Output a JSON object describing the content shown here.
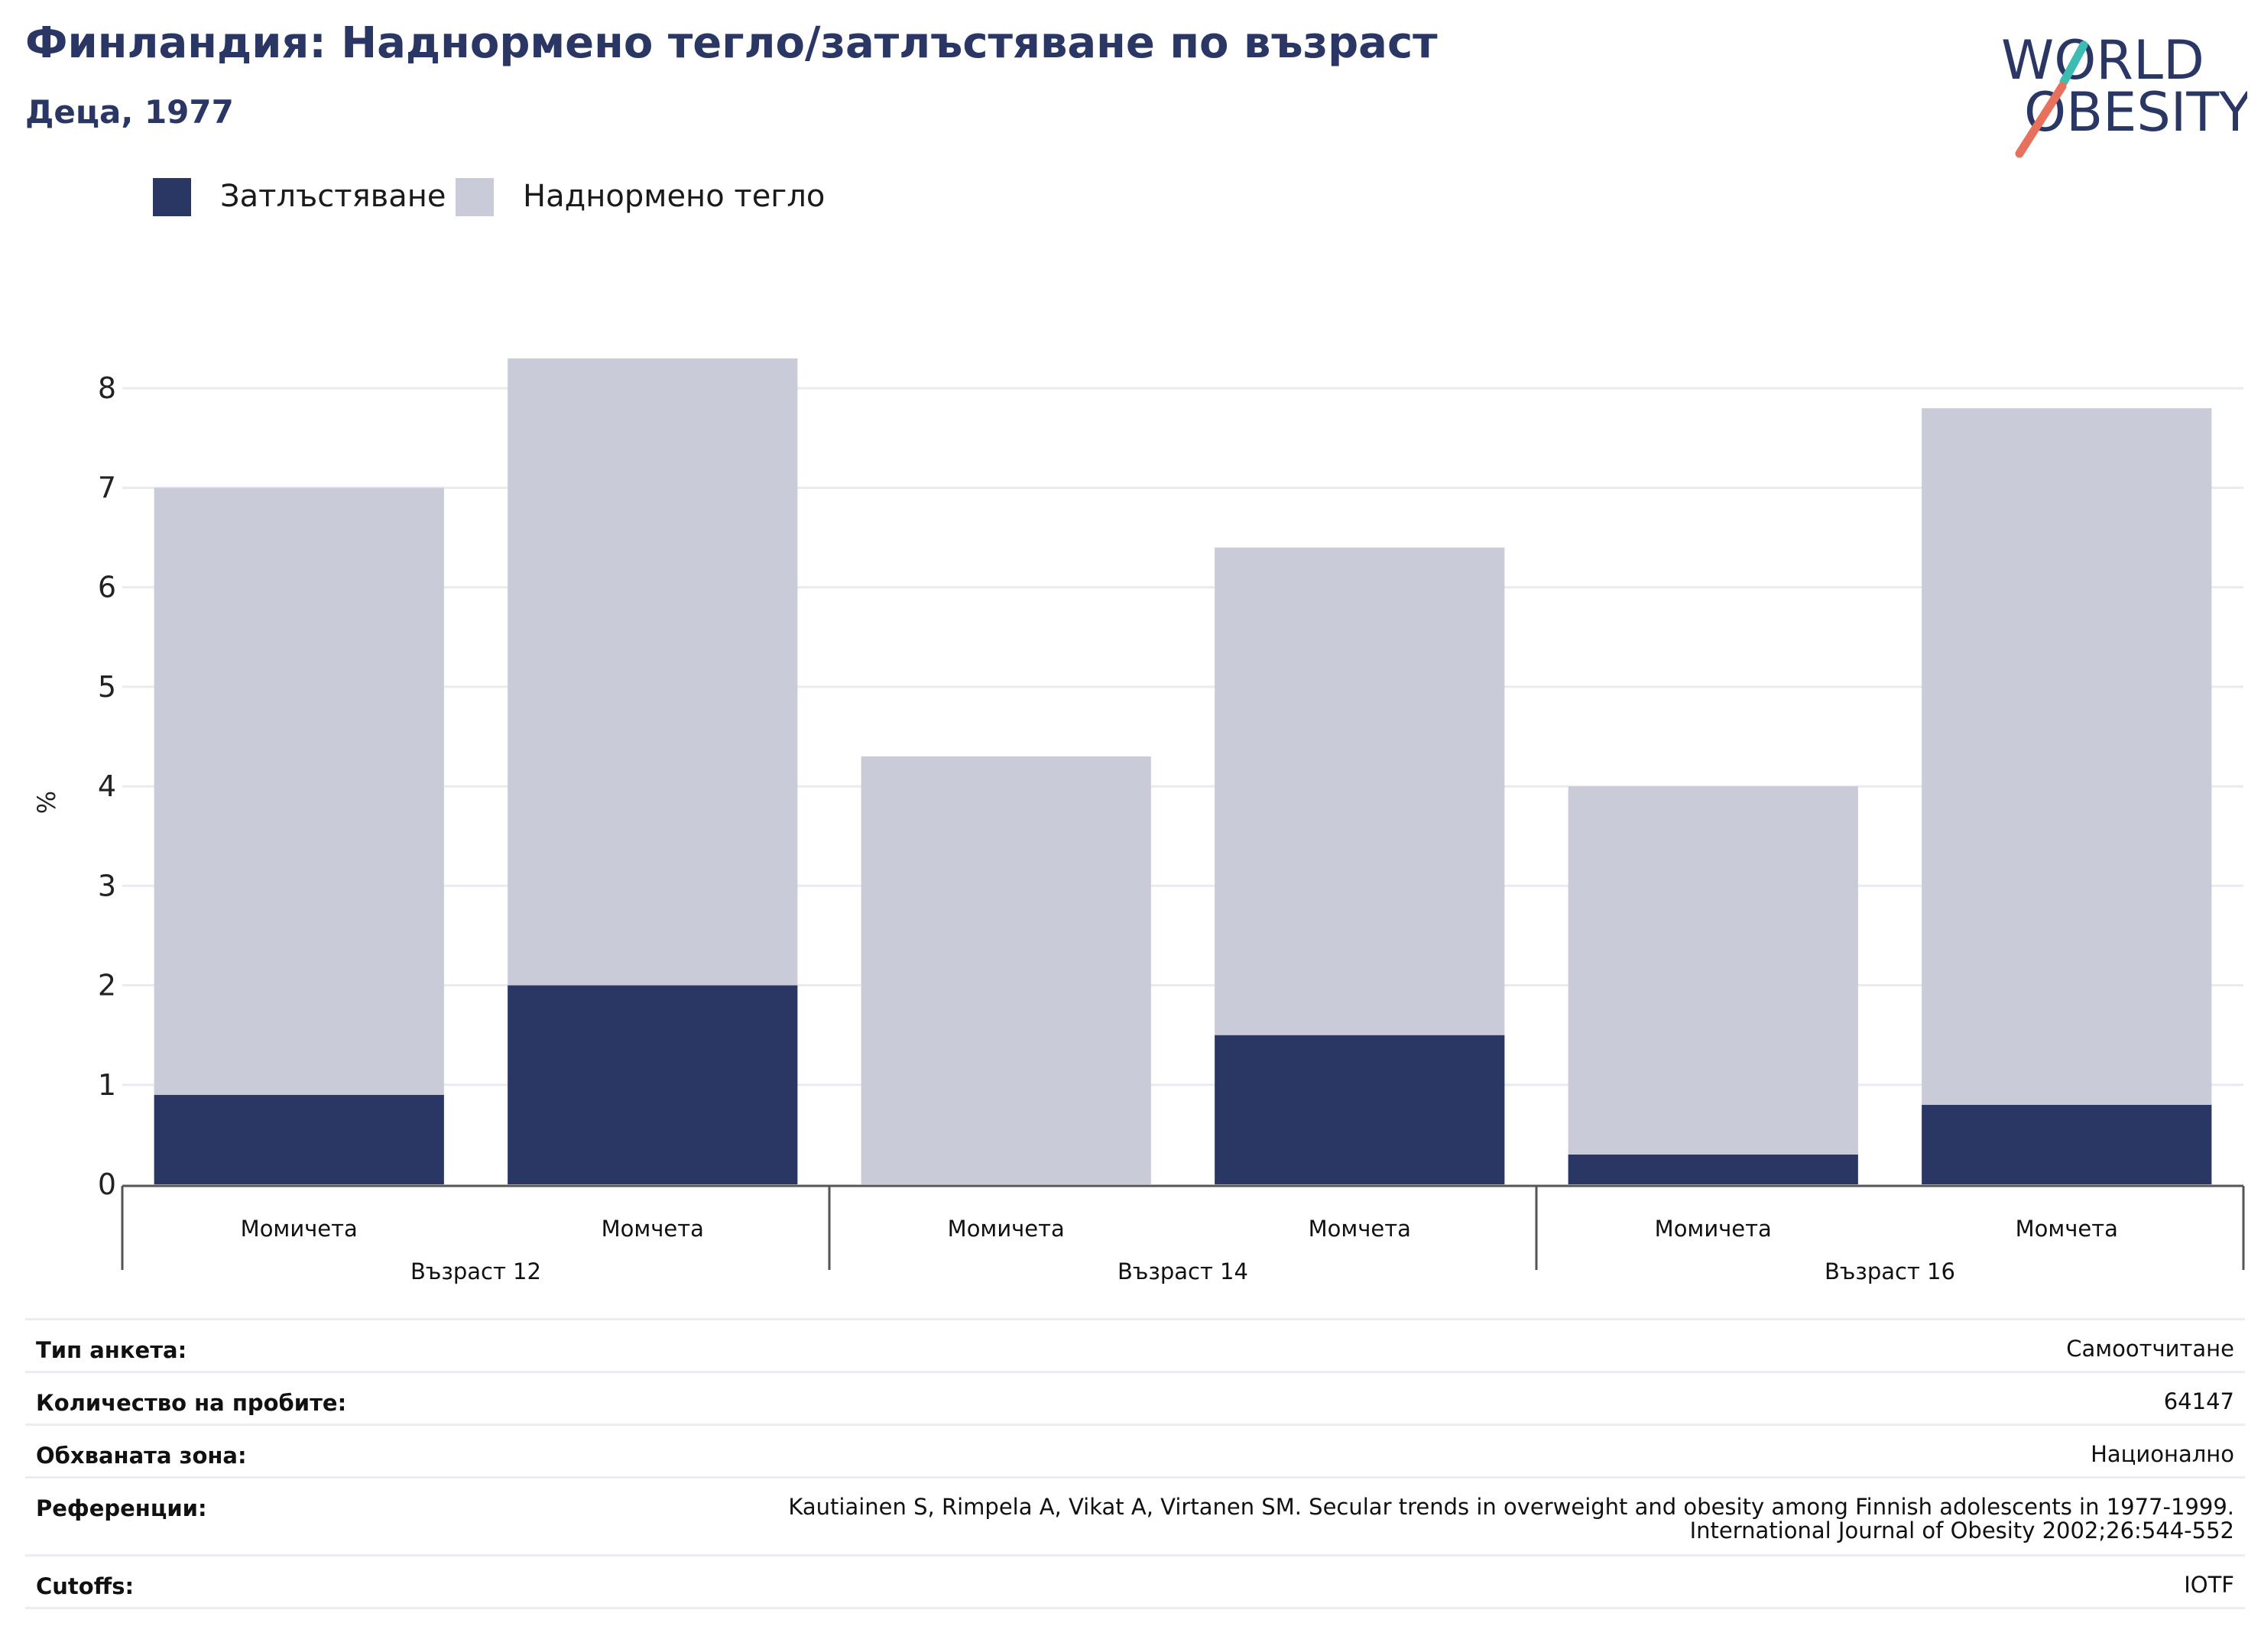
{
  "header": {
    "title": "Финландия: Наднормено тегло/затлъстяване по възраст",
    "subtitle": "Деца, 1977"
  },
  "logo": {
    "line1": "WORLD",
    "line2": "OBESITY",
    "accent_teal": "#3dbcb4",
    "accent_coral": "#e8715e",
    "text_color": "#2a3765"
  },
  "colors": {
    "obesity": "#2a3765",
    "overweight": "#c9ccd8",
    "grid": "#e9ebf0",
    "axis": "#555555"
  },
  "chart_data": {
    "type": "bar",
    "stacked": true,
    "ylabel": "%",
    "ylim": [
      0,
      8.6
    ],
    "yticks": [
      0,
      1,
      2,
      3,
      4,
      5,
      6,
      7,
      8
    ],
    "grid": true,
    "legend_position": "top-left",
    "groups": [
      "Възраст 12",
      "Възраст 14",
      "Възраст 16"
    ],
    "categories": [
      "Момичета",
      "Момчета",
      "Момичета",
      "Момчета",
      "Момичета",
      "Момчета"
    ],
    "category_group": [
      0,
      0,
      1,
      1,
      2,
      2
    ],
    "series": [
      {
        "name": "Затлъстяване",
        "values": [
          0.9,
          2.0,
          0.0,
          1.5,
          0.3,
          0.8
        ]
      },
      {
        "name": "Наднормено тегло",
        "values": [
          6.1,
          6.3,
          4.3,
          4.9,
          3.7,
          7.0
        ]
      }
    ],
    "totals": [
      7.0,
      8.3,
      4.3,
      6.4,
      4.0,
      7.8
    ]
  },
  "meta": [
    {
      "label": "Тип анкета:",
      "value": "Самоотчитане"
    },
    {
      "label": "Количество на пробите:",
      "value": "64147"
    },
    {
      "label": "Обхваната зона:",
      "value": "Национално"
    },
    {
      "label": "Референции:",
      "value": "Kautiainen S, Rimpela A, Vikat A, Virtanen SM. Secular trends in overweight and obesity among Finnish adolescents in 1977-1999. International Journal of Obesity 2002;26:544-552"
    },
    {
      "label": "Cutoffs:",
      "value": "IOTF"
    }
  ]
}
